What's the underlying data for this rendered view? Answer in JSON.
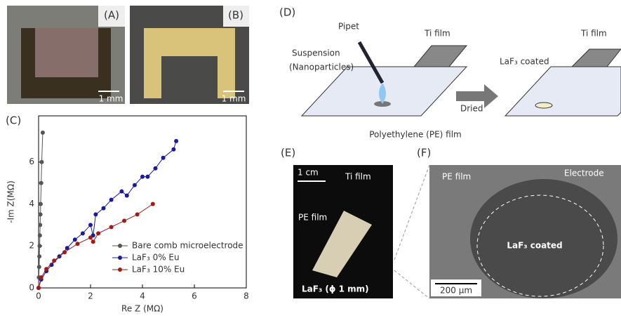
{
  "chart_data": {
    "type": "line",
    "panel": "(C)",
    "xlabel": "Re Z (MΩ)",
    "ylabel": "-Im Z(MΩ)",
    "xlim": [
      0,
      8
    ],
    "xticks": [
      0,
      2,
      4,
      6,
      8
    ],
    "ylim": [
      0,
      8.2
    ],
    "yticks": [
      0,
      2,
      4,
      6
    ],
    "legend": "lower right",
    "series": [
      {
        "name": "Bare comb microelectrode",
        "color": "#555555",
        "x": [
          0,
          0.01,
          0.02,
          0.03,
          0.04,
          0.05,
          0.06,
          0.07,
          0.08,
          0.1,
          0.12,
          0.16
        ],
        "values": [
          0,
          0.5,
          1,
          1.5,
          2,
          2.5,
          3,
          3.5,
          4,
          5,
          6,
          7.4
        ]
      },
      {
        "name": "LaF₃ 0% Eu",
        "color": "#1a1aa0",
        "x": [
          0,
          0.1,
          0.3,
          0.5,
          0.8,
          1.1,
          1.4,
          1.7,
          2.0,
          2.1,
          2.2,
          2.5,
          2.8,
          3.2,
          3.4,
          3.7,
          4.0,
          4.2,
          4.5,
          4.8,
          5.2,
          5.3
        ],
        "values": [
          0,
          0.4,
          0.8,
          1.1,
          1.5,
          1.9,
          2.3,
          2.6,
          3.0,
          2.5,
          3.5,
          3.8,
          4.2,
          4.6,
          4.4,
          4.9,
          5.3,
          5.3,
          5.7,
          6.2,
          6.6,
          7.0
        ]
      },
      {
        "name": "LaF₃ 10% Eu",
        "color": "#a01a1a",
        "x": [
          0,
          0.1,
          0.3,
          0.6,
          1.0,
          1.5,
          2.0,
          2.1,
          2.3,
          2.8,
          3.3,
          3.8,
          4.4
        ],
        "values": [
          0,
          0.5,
          0.9,
          1.3,
          1.7,
          2.1,
          2.4,
          2.2,
          2.6,
          2.9,
          3.2,
          3.5,
          4.0
        ]
      }
    ]
  },
  "panels": {
    "A": {
      "label": "(A)",
      "scale": "1 mm"
    },
    "B": {
      "label": "(B)",
      "scale": "1 mm"
    },
    "D": {
      "label": "(D)",
      "pipet": "Pipet",
      "ti_film_1": "Ti film",
      "suspension": "Suspension",
      "nanoparticles": "(Nanoparticles)",
      "pe_film": "Polyethylene (PE) film",
      "dried": "Dried",
      "ti_film_2": "Ti film",
      "coated": "LaF₃ coated"
    },
    "E": {
      "label": "(E)",
      "scale": "1 cm",
      "ti_film": "Ti film",
      "pe_film": "PE film",
      "spot": "LaF₃ (ϕ 1 mm)"
    },
    "F": {
      "label": "(F)",
      "pe_film": "PE film",
      "electrode": "Electrode",
      "coated": "LaF₃ coated",
      "scale": "200 μm"
    }
  }
}
